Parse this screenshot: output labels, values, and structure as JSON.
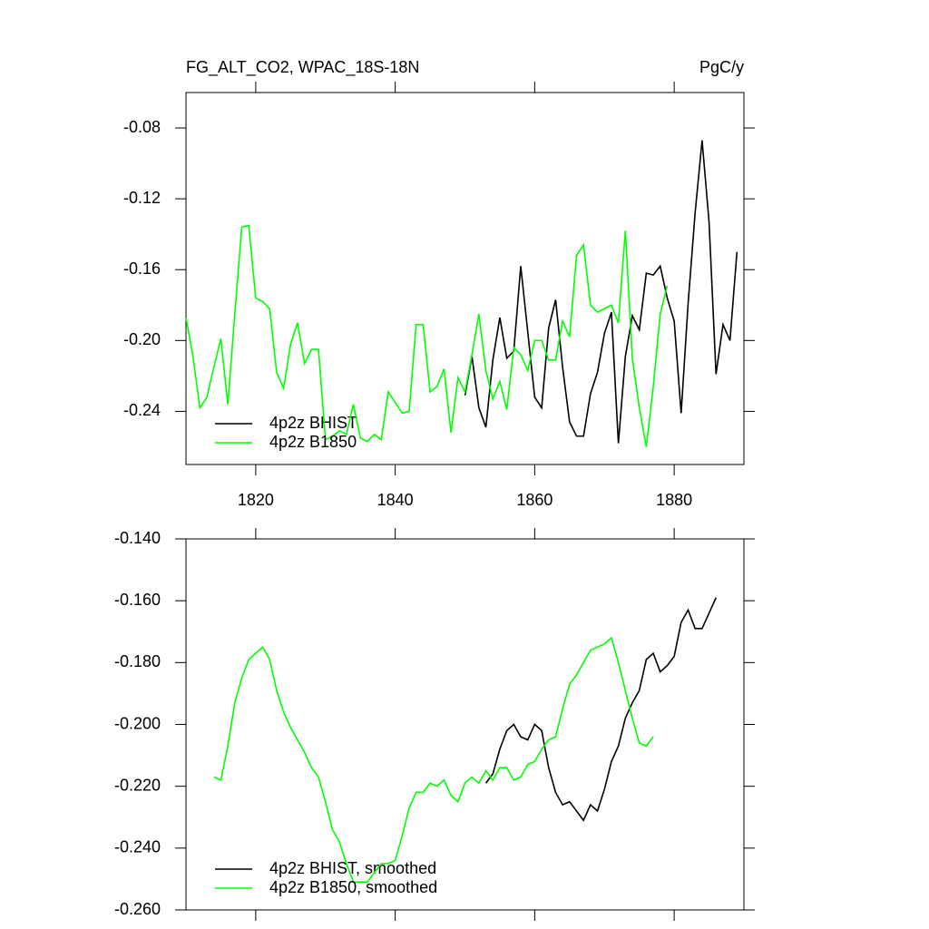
{
  "chart_data": [
    {
      "type": "line",
      "title": "FG_ALT_CO2, WPAC_18S-18N",
      "units": "PgC/y",
      "xlim": [
        1810,
        1890
      ],
      "xticks": [
        1820,
        1840,
        1860,
        1880
      ],
      "ylim": [
        -0.27,
        -0.06
      ],
      "yticks": [
        -0.08,
        -0.12,
        -0.16,
        {
          "value": -0.2,
          "label": "-0.20"
        },
        -0.24
      ],
      "grid": false,
      "legend": "lower left",
      "series": [
        {
          "name": "4p2z BHIST",
          "color": "#000000",
          "x": [
            1850,
            1851,
            1852,
            1853,
            1854,
            1855,
            1856,
            1857,
            1858,
            1859,
            1860,
            1861,
            1862,
            1863,
            1864,
            1865,
            1866,
            1867,
            1868,
            1869,
            1870,
            1871,
            1872,
            1873,
            1874,
            1875,
            1876,
            1877,
            1878,
            1879,
            1880,
            1881,
            1882,
            1883,
            1884,
            1885,
            1886,
            1887,
            1888,
            1889
          ],
          "values": [
            -0.231,
            -0.209,
            -0.238,
            -0.249,
            -0.211,
            -0.187,
            -0.21,
            -0.206,
            -0.158,
            -0.195,
            -0.232,
            -0.238,
            -0.193,
            -0.177,
            -0.215,
            -0.246,
            -0.254,
            -0.254,
            -0.23,
            -0.218,
            -0.196,
            -0.184,
            -0.258,
            -0.209,
            -0.186,
            -0.194,
            -0.162,
            -0.163,
            -0.158,
            -0.176,
            -0.189,
            -0.241,
            -0.179,
            -0.128,
            -0.087,
            -0.133,
            -0.219,
            -0.191,
            -0.2,
            -0.15
          ]
        },
        {
          "name": "4p2z B1850",
          "color": "#00ff00",
          "x": [
            1810,
            1811,
            1812,
            1813,
            1814,
            1815,
            1816,
            1817,
            1818,
            1819,
            1820,
            1821,
            1822,
            1823,
            1824,
            1825,
            1826,
            1827,
            1828,
            1829,
            1830,
            1831,
            1832,
            1833,
            1834,
            1835,
            1836,
            1837,
            1838,
            1839,
            1840,
            1841,
            1842,
            1843,
            1844,
            1845,
            1846,
            1847,
            1848,
            1849,
            1850,
            1851,
            1852,
            1853,
            1854,
            1855,
            1856,
            1857,
            1858,
            1859,
            1860,
            1861,
            1862,
            1863,
            1864,
            1865,
            1866,
            1867,
            1868,
            1869,
            1870,
            1871,
            1872,
            1873,
            1874,
            1875,
            1876,
            1877,
            1878,
            1879
          ],
          "values": [
            -0.187,
            -0.209,
            -0.238,
            -0.232,
            -0.215,
            -0.199,
            -0.236,
            -0.185,
            -0.136,
            -0.135,
            -0.176,
            -0.178,
            -0.182,
            -0.218,
            -0.227,
            -0.202,
            -0.19,
            -0.213,
            -0.205,
            -0.205,
            -0.256,
            -0.254,
            -0.251,
            -0.253,
            -0.236,
            -0.255,
            -0.257,
            -0.253,
            -0.256,
            -0.229,
            -0.235,
            -0.241,
            -0.24,
            -0.191,
            -0.191,
            -0.229,
            -0.226,
            -0.216,
            -0.252,
            -0.221,
            -0.229,
            -0.208,
            -0.185,
            -0.217,
            -0.233,
            -0.223,
            -0.239,
            -0.204,
            -0.208,
            -0.217,
            -0.2,
            -0.2,
            -0.211,
            -0.211,
            -0.189,
            -0.198,
            -0.152,
            -0.146,
            -0.18,
            -0.184,
            -0.182,
            -0.18,
            -0.19,
            -0.138,
            -0.21,
            -0.238,
            -0.26,
            -0.226,
            -0.185,
            -0.169
          ]
        }
      ]
    },
    {
      "type": "line",
      "xlim": [
        1810,
        1890
      ],
      "xticks": [
        1820,
        1840,
        1860,
        1880
      ],
      "ylim": [
        -0.26,
        -0.14
      ],
      "yticks": [
        {
          "value": -0.14,
          "label": "-0.140"
        },
        {
          "value": -0.16,
          "label": "-0.160"
        },
        {
          "value": -0.18,
          "label": "-0.180"
        },
        {
          "value": -0.2,
          "label": "-0.200"
        },
        {
          "value": -0.22,
          "label": "-0.220"
        },
        {
          "value": -0.24,
          "label": "-0.240"
        },
        {
          "value": -0.26,
          "label": "-0.260"
        }
      ],
      "grid": false,
      "legend": "lower left",
      "series": [
        {
          "name": "4p2z BHIST, smoothed",
          "color": "#000000",
          "x": [
            1853,
            1854,
            1855,
            1856,
            1857,
            1858,
            1859,
            1860,
            1861,
            1862,
            1863,
            1864,
            1865,
            1866,
            1867,
            1868,
            1869,
            1870,
            1871,
            1872,
            1873,
            1874,
            1875,
            1876,
            1877,
            1878,
            1879,
            1880,
            1881,
            1882,
            1883,
            1884,
            1885,
            1886
          ],
          "values": [
            -0.219,
            -0.216,
            -0.208,
            -0.202,
            -0.2,
            -0.204,
            -0.205,
            -0.2,
            -0.202,
            -0.214,
            -0.222,
            -0.226,
            -0.225,
            -0.228,
            -0.231,
            -0.226,
            -0.228,
            -0.221,
            -0.212,
            -0.207,
            -0.198,
            -0.193,
            -0.189,
            -0.179,
            -0.177,
            -0.183,
            -0.181,
            -0.178,
            -0.167,
            -0.163,
            -0.169,
            -0.169,
            -0.164,
            -0.159
          ]
        },
        {
          "name": "4p2z B1850, smoothed",
          "color": "#00ff00",
          "x": [
            1814,
            1815,
            1816,
            1817,
            1818,
            1819,
            1820,
            1821,
            1822,
            1823,
            1824,
            1825,
            1826,
            1827,
            1828,
            1829,
            1830,
            1831,
            1832,
            1833,
            1834,
            1835,
            1836,
            1837,
            1838,
            1839,
            1840,
            1841,
            1842,
            1843,
            1844,
            1845,
            1846,
            1847,
            1848,
            1849,
            1850,
            1851,
            1852,
            1853,
            1854,
            1855,
            1856,
            1857,
            1858,
            1859,
            1860,
            1861,
            1862,
            1863,
            1864,
            1865,
            1866,
            1867,
            1868,
            1869,
            1870,
            1871,
            1872,
            1873,
            1874,
            1875,
            1876,
            1877
          ],
          "values": [
            -0.217,
            -0.218,
            -0.207,
            -0.193,
            -0.185,
            -0.179,
            -0.177,
            -0.175,
            -0.179,
            -0.189,
            -0.196,
            -0.201,
            -0.205,
            -0.209,
            -0.214,
            -0.217,
            -0.225,
            -0.234,
            -0.238,
            -0.245,
            -0.251,
            -0.251,
            -0.251,
            -0.248,
            -0.245,
            -0.245,
            -0.244,
            -0.236,
            -0.227,
            -0.222,
            -0.222,
            -0.219,
            -0.22,
            -0.218,
            -0.223,
            -0.225,
            -0.219,
            -0.217,
            -0.219,
            -0.215,
            -0.218,
            -0.214,
            -0.214,
            -0.218,
            -0.217,
            -0.213,
            -0.212,
            -0.208,
            -0.205,
            -0.204,
            -0.195,
            -0.187,
            -0.184,
            -0.18,
            -0.176,
            -0.175,
            -0.174,
            -0.172,
            -0.18,
            -0.189,
            -0.198,
            -0.206,
            -0.207,
            -0.204
          ]
        }
      ]
    }
  ]
}
